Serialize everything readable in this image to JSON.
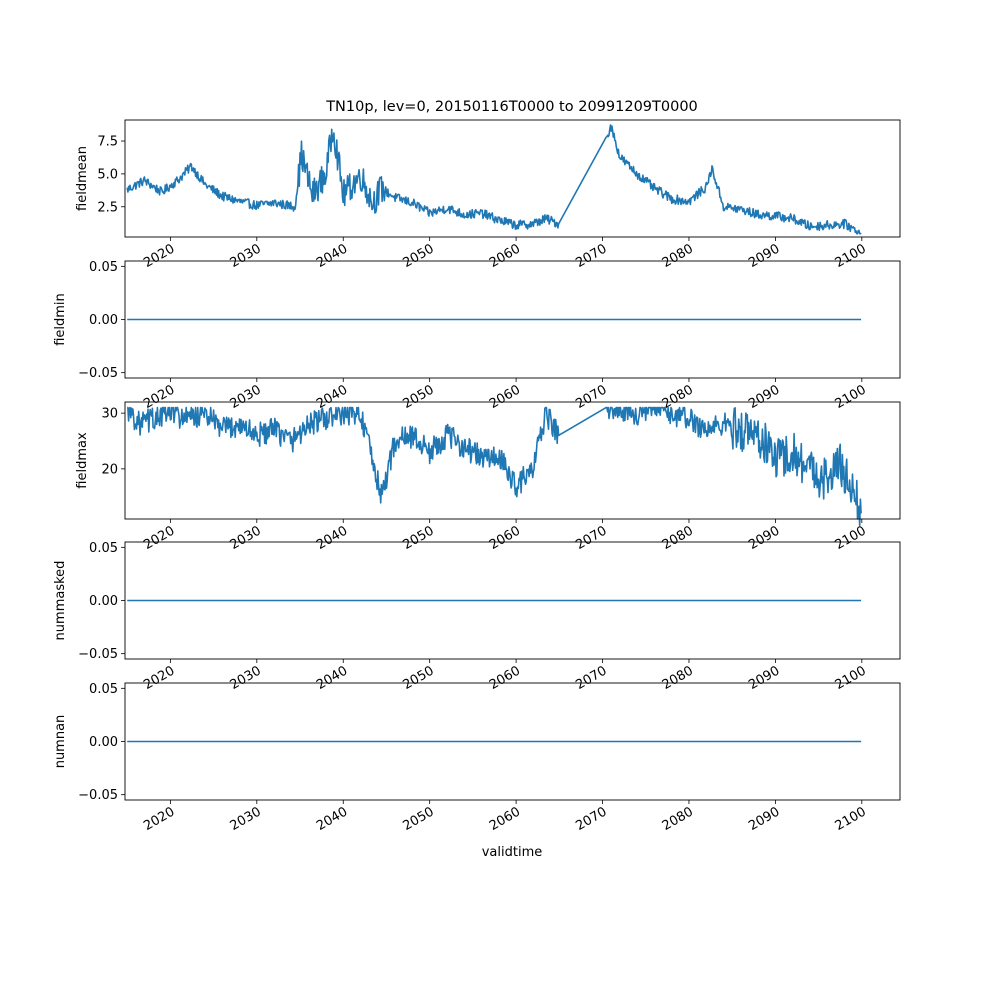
{
  "chart_data": {
    "type": "line",
    "title": "TN10p, lev=0, 20150116T0000 to 20991209T0000",
    "xlabel": "validtime",
    "x_range": [
      "2014-10-01",
      "2104-06-01"
    ],
    "x_ticks": [
      2020,
      2030,
      2040,
      2050,
      2060,
      2070,
      2080,
      2090,
      2100
    ],
    "x_tick_labels": [
      "2020",
      "2030",
      "2040",
      "2050",
      "2060",
      "2070",
      "2080",
      "2090",
      "2100"
    ],
    "line_color": "#1f77b4",
    "panels": [
      {
        "ylabel": "fieldmean",
        "ylim": [
          0.2,
          9.1
        ],
        "yticks": [
          2.5,
          5.0,
          7.5
        ],
        "ytick_labels": [
          "2.5",
          "5.0",
          "7.5"
        ],
        "series": [
          {
            "x": [
              "2015-01",
              "2017-01",
              "2019-01",
              "2021-01",
              "2022-06",
              "2024-01",
              "2026-01",
              "2028-01",
              "2030-01",
              "2032-01",
              "2034-06",
              "2035-03",
              "2036-06",
              "2038-01",
              "2038-11",
              "2040-01",
              "2042-01",
              "2043-06",
              "2044-06",
              "2046-01",
              "2048-01",
              "2050-01",
              "2052-01",
              "2054-01",
              "2056-01",
              "2058-01",
              "2060-01",
              "2062-01",
              "2063-06",
              "2064-12",
              "2070-06",
              "2071-01",
              "2072-01",
              "2074-01",
              "2076-01",
              "2078-01",
              "2080-01",
              "2082-01",
              "2082-09",
              "2084-01",
              "2086-01",
              "2088-01",
              "2090-01",
              "2092-01",
              "2094-01",
              "2096-01",
              "2098-01",
              "2099-12"
            ],
            "values": [
              3.8,
              4.5,
              3.6,
              4.6,
              5.6,
              4.2,
              3.3,
              2.9,
              2.6,
              2.8,
              2.5,
              6.5,
              3.4,
              5.0,
              8.7,
              3.4,
              4.9,
              2.8,
              3.9,
              3.2,
              2.8,
              2.0,
              2.4,
              1.9,
              2.0,
              1.5,
              1.1,
              1.2,
              1.6,
              1.2,
              7.7,
              8.6,
              6.3,
              5.0,
              3.9,
              3.1,
              2.9,
              4.0,
              5.4,
              2.5,
              2.3,
              1.9,
              1.8,
              1.6,
              1.0,
              1.1,
              1.2,
              0.5
            ]
          }
        ]
      },
      {
        "ylabel": "fieldmin",
        "ylim": [
          -0.055,
          0.055
        ],
        "yticks": [
          -0.05,
          0.0,
          0.05
        ],
        "ytick_labels": [
          "−0.05",
          "0.00",
          "0.05"
        ],
        "series": [
          {
            "x": [
              "2015-01",
              "2099-12"
            ],
            "values": [
              0,
              0
            ]
          }
        ]
      },
      {
        "ylabel": "fieldmax",
        "ylim": [
          11,
          32
        ],
        "yticks": [
          20,
          30
        ],
        "ytick_labels": [
          "20",
          "30"
        ],
        "series": [
          {
            "x": [
              "2015-01",
              "2016-06",
              "2018-01",
              "2020-01",
              "2022-01",
              "2024-01",
              "2026-01",
              "2028-01",
              "2030-01",
              "2032-01",
              "2034-01",
              "2036-01",
              "2038-01",
              "2040-01",
              "2042-01",
              "2044-06",
              "2046-01",
              "2048-01",
              "2050-01",
              "2052-01",
              "2054-01",
              "2056-01",
              "2058-01",
              "2060-01",
              "2062-01",
              "2063-06",
              "2064-12",
              "2070-06",
              "2072-01",
              "2074-01",
              "2076-01",
              "2078-01",
              "2080-01",
              "2082-01",
              "2084-01",
              "2086-01",
              "2088-01",
              "2090-01",
              "2092-01",
              "2094-01",
              "2096-01",
              "2097-06",
              "2099-01",
              "2099-12"
            ],
            "values": [
              31,
              28,
              29,
              30,
              29,
              30,
              27,
              28,
              26,
              27,
              25,
              28,
              29,
              30,
              30,
              15,
              25,
              26,
              23,
              26,
              24,
              22,
              22,
              17,
              20,
              30,
              26,
              31,
              31,
              30,
              31,
              30,
              29,
              27,
              28,
              27,
              26,
              22,
              23,
              20,
              18,
              21,
              16,
              12
            ]
          }
        ]
      },
      {
        "ylabel": "nummasked",
        "ylim": [
          -0.055,
          0.055
        ],
        "yticks": [
          -0.05,
          0.0,
          0.05
        ],
        "ytick_labels": [
          "−0.05",
          "0.00",
          "0.05"
        ],
        "series": [
          {
            "x": [
              "2015-01",
              "2099-12"
            ],
            "values": [
              0,
              0
            ]
          }
        ]
      },
      {
        "ylabel": "numnan",
        "ylim": [
          -0.055,
          0.055
        ],
        "yticks": [
          -0.05,
          0.0,
          0.05
        ],
        "ytick_labels": [
          "−0.05",
          "0.00",
          "0.05"
        ],
        "series": [
          {
            "x": [
              "2015-01",
              "2099-12"
            ],
            "values": [
              0,
              0
            ]
          }
        ]
      }
    ]
  }
}
